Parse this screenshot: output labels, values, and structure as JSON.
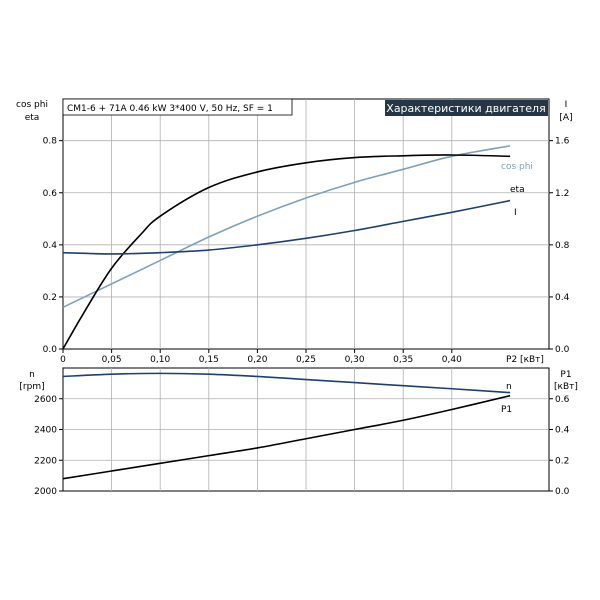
{
  "chart_data": [
    {
      "type": "line",
      "info_box": "CM1-6 + 71A   0.46 kW   3*400 V, 50 Hz, SF = 1",
      "title": "Характеристики двигателя",
      "left_axis": {
        "label_line1": "cos phi",
        "label_line2": "eta",
        "ticks": [
          "0.0",
          "0.2",
          "0.4",
          "0.6",
          "0.8"
        ],
        "ylim": [
          0,
          0.96
        ]
      },
      "right_axis": {
        "label_line1": "I",
        "label_line2": "[A]",
        "ticks": [
          "0.0",
          "0.4",
          "0.8",
          "1.2",
          "1.6"
        ],
        "ylim": [
          0,
          1.92
        ]
      },
      "x_axis": {
        "label": "P2 [кВт]",
        "ticks": [
          "0",
          "0,05",
          "0,10",
          "0,15",
          "0,20",
          "0,25",
          "0,30",
          "0,35",
          "0,40"
        ],
        "xlim": [
          0,
          0.5
        ]
      },
      "series": [
        {
          "name": "cos phi",
          "axis": "left",
          "color": "#7f9fbf",
          "x": [
            0,
            0.05,
            0.1,
            0.15,
            0.2,
            0.25,
            0.3,
            0.35,
            0.4,
            0.46
          ],
          "y": [
            0.16,
            0.25,
            0.34,
            0.43,
            0.51,
            0.58,
            0.64,
            0.69,
            0.74,
            0.78
          ]
        },
        {
          "name": "eta",
          "axis": "left",
          "color": "#000000",
          "x": [
            0,
            0.02,
            0.05,
            0.08,
            0.1,
            0.15,
            0.2,
            0.25,
            0.3,
            0.35,
            0.4,
            0.46
          ],
          "y": [
            0,
            0.13,
            0.31,
            0.44,
            0.51,
            0.62,
            0.68,
            0.715,
            0.735,
            0.742,
            0.745,
            0.74
          ]
        },
        {
          "name": "I",
          "axis": "right",
          "color": "#1f3f6f",
          "x": [
            0,
            0.05,
            0.1,
            0.15,
            0.2,
            0.25,
            0.3,
            0.35,
            0.4,
            0.46
          ],
          "y": [
            0.74,
            0.73,
            0.74,
            0.76,
            0.8,
            0.85,
            0.91,
            0.98,
            1.05,
            1.14
          ]
        }
      ]
    },
    {
      "type": "line",
      "left_axis": {
        "label_line1": "n",
        "label_line2": "[rpm]",
        "ticks": [
          "2000",
          "2200",
          "2400",
          "2600"
        ],
        "ylim": [
          2000,
          2800
        ]
      },
      "right_axis": {
        "label_line1": "P1",
        "label_line2": "[кВт]",
        "ticks": [
          "0.0",
          "0.2",
          "0.4",
          "0.6"
        ],
        "ylim": [
          0,
          0.8
        ]
      },
      "series": [
        {
          "name": "n",
          "axis": "left",
          "color": "#1f3f6f",
          "x": [
            0,
            0.05,
            0.1,
            0.15,
            0.2,
            0.25,
            0.3,
            0.35,
            0.4,
            0.46
          ],
          "y": [
            2745,
            2760,
            2765,
            2760,
            2745,
            2725,
            2705,
            2685,
            2665,
            2640
          ]
        },
        {
          "name": "P1",
          "axis": "right",
          "color": "#000000",
          "x": [
            0,
            0.05,
            0.1,
            0.15,
            0.2,
            0.25,
            0.3,
            0.35,
            0.4,
            0.46
          ],
          "y": [
            0.08,
            0.13,
            0.18,
            0.23,
            0.28,
            0.34,
            0.4,
            0.46,
            0.53,
            0.62
          ]
        }
      ]
    }
  ]
}
